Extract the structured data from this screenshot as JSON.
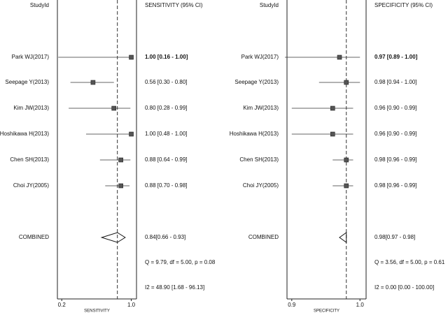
{
  "chart_data": [
    {
      "type": "forest",
      "column_header": "StudyId",
      "estimate_header": "SENSITIVITY (95% CI)",
      "xlabel": "SENSITIVITY",
      "categories": [
        "Park WJ(2017)",
        "Seepage Y(2013)",
        "Kim JW(2013)",
        "Hoshikawa H(2013)",
        "Chen SH(2013)",
        "Choi JY(2005)"
      ],
      "values": [
        1.0,
        0.56,
        0.8,
        1.0,
        0.88,
        0.88
      ],
      "lower": [
        0.16,
        0.3,
        0.28,
        0.48,
        0.64,
        0.7
      ],
      "upper": [
        1.0,
        0.8,
        0.99,
        1.0,
        0.99,
        0.98
      ],
      "value_labels": [
        "1.00 [0.16 - 1.00]",
        "0.56 [0.30 - 0.80]",
        "0.80 [0.28 - 0.99]",
        "1.00 [0.48 - 1.00]",
        "0.88 [0.64 - 0.99]",
        "0.88 [0.70 - 0.98]"
      ],
      "combined": {
        "name": "COMBINED",
        "value": 0.84,
        "lower": 0.66,
        "upper": 0.93,
        "label": "0.84[0.66 - 0.93]"
      },
      "heterogeneity": [
        "Q =  9.79, df = 5.00, p =  0.08",
        "I2 = 48.90 [1.68 - 96.13]"
      ],
      "color": "#555555",
      "xlim": [
        0.15,
        1.06
      ],
      "xticks": [
        0.2,
        {
          "value": 1,
          "label": "1.0"
        }
      ]
    },
    {
      "type": "forest",
      "column_header": "StudyId",
      "estimate_header": "SPECIFICITY (95% CI)",
      "xlabel": "SPECIFICITY",
      "categories": [
        "Park WJ(2017)",
        "Seepage Y(2013)",
        "Kim JW(2013)",
        "Hoshikawa H(2013)",
        "Chen SH(2013)",
        "Choi JY(2005)"
      ],
      "values": [
        0.97,
        0.98,
        0.96,
        0.96,
        0.98,
        0.98
      ],
      "lower": [
        0.89,
        0.94,
        0.9,
        0.9,
        0.96,
        0.96
      ],
      "upper": [
        1.0,
        1.0,
        0.99,
        0.99,
        0.99,
        0.99
      ],
      "value_labels": [
        "0.97 [0.89 - 1.00]",
        "0.98 [0.94 - 1.00]",
        "0.96 [0.90 - 0.99]",
        "0.96 [0.90 - 0.99]",
        "0.98 [0.96 - 0.99]",
        "0.98 [0.96 - 0.99]"
      ],
      "combined": {
        "name": "COMBINED",
        "value": 0.98,
        "lower": 0.97,
        "upper": 0.98,
        "label": "0.98[0.97 - 0.98]"
      },
      "heterogeneity": [
        "Q =  3.56, df = 5.00, p =  0.61",
        "I2 = 0.00 [0.00 - 100.00]"
      ],
      "color": "#555555",
      "xlim": [
        0.893,
        1.009
      ],
      "xticks": [
        0.9,
        {
          "value": 1,
          "label": "1.0"
        }
      ]
    }
  ]
}
